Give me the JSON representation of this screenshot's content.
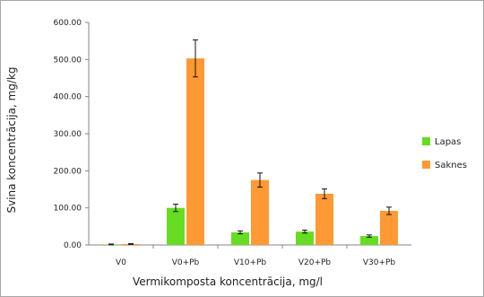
{
  "chart_data": {
    "type": "bar",
    "categories": [
      "V0",
      "V0+Pb",
      "V10+Pb",
      "V20+Pb",
      "V30+Pb"
    ],
    "series": [
      {
        "name": "Lapas",
        "color": "#66dd22",
        "values": [
          1.5,
          100,
          34,
          36,
          24
        ],
        "errors": [
          1,
          10,
          4,
          4,
          3
        ]
      },
      {
        "name": "Saknes",
        "color": "#ff9933",
        "values": [
          2.5,
          503,
          175,
          138,
          92
        ],
        "errors": [
          1,
          50,
          19,
          13,
          10
        ]
      }
    ],
    "xlabel": "Vermikomposta  koncentrācija, mg/l",
    "ylabel": "Svina koncentrācija, mg/kg",
    "ylim": [
      0,
      600
    ],
    "yticks": [
      "0.00",
      "100.00",
      "200.00",
      "300.00",
      "400.00",
      "500.00",
      "600.00"
    ],
    "grid": false,
    "legend_position": "right"
  }
}
